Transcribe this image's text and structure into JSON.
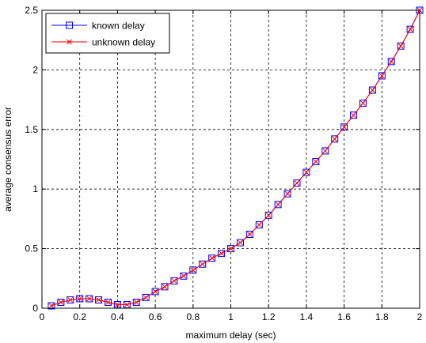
{
  "chart_data": {
    "type": "line",
    "title": "",
    "xlabel": "maximum delay (sec)",
    "ylabel": "average consensus error",
    "xlim": [
      0,
      2
    ],
    "ylim": [
      0,
      2.5
    ],
    "xticks": [
      0,
      0.2,
      0.4,
      0.6,
      0.8,
      1,
      1.2,
      1.4,
      1.6,
      1.8,
      2
    ],
    "xtick_labels": [
      "0",
      "0.2",
      "0.4",
      "0.6",
      "0.8",
      "1",
      "1.2",
      "1.4",
      "1.6",
      "1.8",
      "2"
    ],
    "yticks": [
      0,
      0.5,
      1,
      1.5,
      2,
      2.5
    ],
    "ytick_labels": [
      "0",
      "0.5",
      "1",
      "1.5",
      "2",
      "2.5"
    ],
    "grid": true,
    "legend_position": "top-left",
    "x": [
      0.05,
      0.1,
      0.15,
      0.2,
      0.25,
      0.3,
      0.35,
      0.4,
      0.45,
      0.5,
      0.55,
      0.6,
      0.65,
      0.7,
      0.75,
      0.8,
      0.85,
      0.9,
      0.95,
      1.0,
      1.05,
      1.1,
      1.15,
      1.2,
      1.25,
      1.3,
      1.35,
      1.4,
      1.45,
      1.5,
      1.55,
      1.6,
      1.65,
      1.7,
      1.75,
      1.8,
      1.85,
      1.9,
      1.95,
      2.0
    ],
    "series": [
      {
        "name": "known delay",
        "color": "#0000ff",
        "marker": "square",
        "values": [
          0.02,
          0.05,
          0.07,
          0.08,
          0.08,
          0.07,
          0.05,
          0.03,
          0.03,
          0.05,
          0.09,
          0.14,
          0.18,
          0.23,
          0.27,
          0.32,
          0.37,
          0.42,
          0.46,
          0.5,
          0.55,
          0.62,
          0.7,
          0.78,
          0.87,
          0.96,
          1.05,
          1.14,
          1.23,
          1.32,
          1.42,
          1.52,
          1.62,
          1.72,
          1.83,
          1.95,
          2.07,
          2.2,
          2.34,
          2.5
        ]
      },
      {
        "name": "unknown delay",
        "color": "#ff0000",
        "marker": "x",
        "values": [
          0.02,
          0.05,
          0.07,
          0.08,
          0.08,
          0.07,
          0.05,
          0.03,
          0.03,
          0.05,
          0.09,
          0.14,
          0.18,
          0.23,
          0.27,
          0.32,
          0.37,
          0.42,
          0.46,
          0.5,
          0.55,
          0.62,
          0.7,
          0.78,
          0.87,
          0.96,
          1.05,
          1.14,
          1.23,
          1.32,
          1.42,
          1.52,
          1.62,
          1.72,
          1.83,
          1.95,
          2.07,
          2.2,
          2.34,
          2.5
        ]
      }
    ]
  }
}
